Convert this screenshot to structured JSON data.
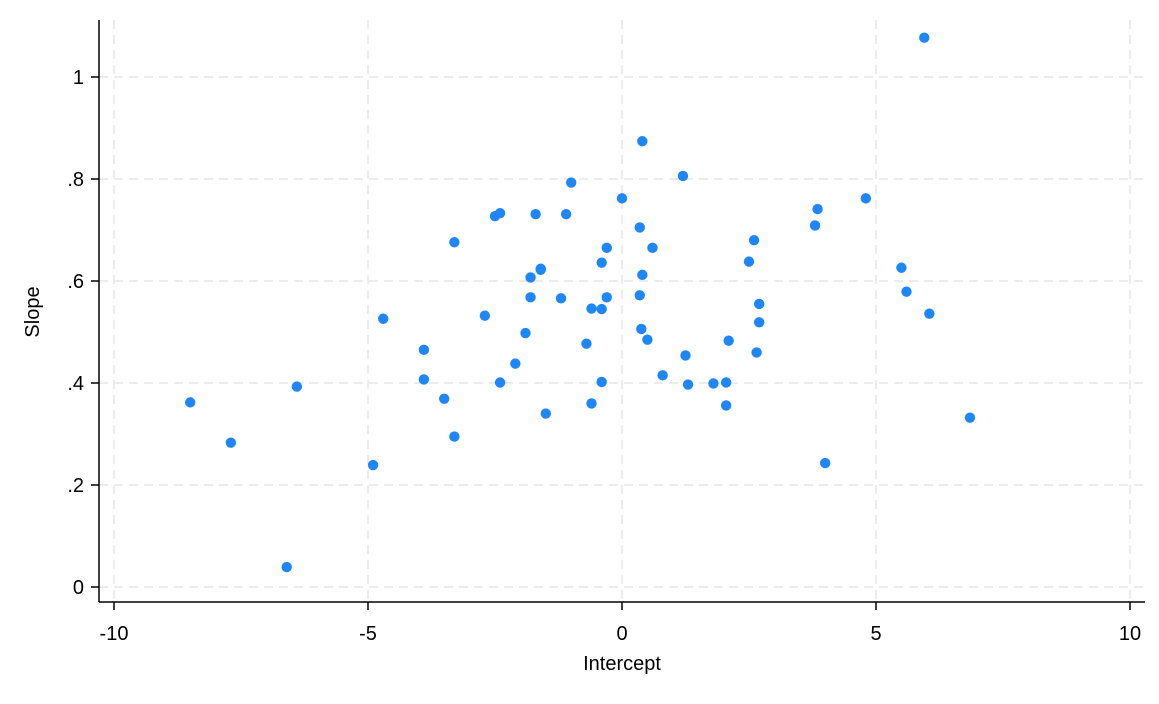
{
  "chart_data": {
    "type": "scatter",
    "title": "",
    "xlabel": "Intercept",
    "ylabel": "Slope",
    "xlim": [
      -10,
      10
    ],
    "ylim": [
      0,
      1
    ],
    "grid": true,
    "x_ticks": [
      {
        "value": -10,
        "label": "-10"
      },
      {
        "value": -5,
        "label": "-5"
      },
      {
        "value": 0,
        "label": "0"
      },
      {
        "value": 5,
        "label": "5"
      },
      {
        "value": 10,
        "label": "10"
      }
    ],
    "y_ticks": [
      {
        "value": 0,
        "label": "0"
      },
      {
        "value": 0.2,
        "label": ".2"
      },
      {
        "value": 0.4,
        "label": ".4"
      },
      {
        "value": 0.6,
        "label": ".6"
      },
      {
        "value": 0.8,
        "label": ".8"
      },
      {
        "value": 1,
        "label": "1"
      }
    ],
    "marker_color": "#1e87f5",
    "grid_color": "#e6e6e6",
    "points": [
      {
        "x": -8.5,
        "y": 0.362
      },
      {
        "x": -7.7,
        "y": 0.283
      },
      {
        "x": -6.6,
        "y": 0.039
      },
      {
        "x": -6.4,
        "y": 0.393
      },
      {
        "x": -4.9,
        "y": 0.239
      },
      {
        "x": -4.7,
        "y": 0.526
      },
      {
        "x": -3.9,
        "y": 0.465
      },
      {
        "x": -3.9,
        "y": 0.407
      },
      {
        "x": -3.5,
        "y": 0.369
      },
      {
        "x": -3.3,
        "y": 0.676
      },
      {
        "x": -3.3,
        "y": 0.295
      },
      {
        "x": -2.7,
        "y": 0.532
      },
      {
        "x": -2.5,
        "y": 0.727
      },
      {
        "x": -2.4,
        "y": 0.733
      },
      {
        "x": -2.4,
        "y": 0.401
      },
      {
        "x": -2.1,
        "y": 0.438
      },
      {
        "x": -1.9,
        "y": 0.498
      },
      {
        "x": -1.8,
        "y": 0.607
      },
      {
        "x": -1.8,
        "y": 0.568
      },
      {
        "x": -1.7,
        "y": 0.731
      },
      {
        "x": -1.6,
        "y": 0.622
      },
      {
        "x": -1.6,
        "y": 0.624
      },
      {
        "x": -1.5,
        "y": 0.34
      },
      {
        "x": -1.2,
        "y": 0.566
      },
      {
        "x": -1.1,
        "y": 0.731
      },
      {
        "x": -1.0,
        "y": 0.793
      },
      {
        "x": -0.7,
        "y": 0.477
      },
      {
        "x": -0.6,
        "y": 0.546
      },
      {
        "x": -0.6,
        "y": 0.36
      },
      {
        "x": -0.4,
        "y": 0.636
      },
      {
        "x": -0.4,
        "y": 0.545
      },
      {
        "x": -0.4,
        "y": 0.402
      },
      {
        "x": -0.3,
        "y": 0.665
      },
      {
        "x": -0.3,
        "y": 0.568
      },
      {
        "x": 0.0,
        "y": 0.762
      },
      {
        "x": 0.35,
        "y": 0.572
      },
      {
        "x": 0.35,
        "y": 0.705
      },
      {
        "x": 0.38,
        "y": 0.506
      },
      {
        "x": 0.4,
        "y": 0.874
      },
      {
        "x": 0.4,
        "y": 0.612
      },
      {
        "x": 0.5,
        "y": 0.485
      },
      {
        "x": 0.6,
        "y": 0.665
      },
      {
        "x": 0.8,
        "y": 0.415
      },
      {
        "x": 1.2,
        "y": 0.806
      },
      {
        "x": 1.25,
        "y": 0.454
      },
      {
        "x": 1.3,
        "y": 0.397
      },
      {
        "x": 1.8,
        "y": 0.399
      },
      {
        "x": 2.05,
        "y": 0.401
      },
      {
        "x": 2.05,
        "y": 0.356
      },
      {
        "x": 2.1,
        "y": 0.483
      },
      {
        "x": 2.5,
        "y": 0.638
      },
      {
        "x": 2.6,
        "y": 0.68
      },
      {
        "x": 2.65,
        "y": 0.46
      },
      {
        "x": 2.7,
        "y": 0.555
      },
      {
        "x": 2.7,
        "y": 0.519
      },
      {
        "x": 3.8,
        "y": 0.709
      },
      {
        "x": 3.85,
        "y": 0.741
      },
      {
        "x": 4.0,
        "y": 0.243
      },
      {
        "x": 4.8,
        "y": 0.762
      },
      {
        "x": 5.5,
        "y": 0.626
      },
      {
        "x": 5.6,
        "y": 0.579
      },
      {
        "x": 5.95,
        "y": 1.077
      },
      {
        "x": 6.05,
        "y": 0.536
      },
      {
        "x": 6.85,
        "y": 0.332
      }
    ]
  }
}
